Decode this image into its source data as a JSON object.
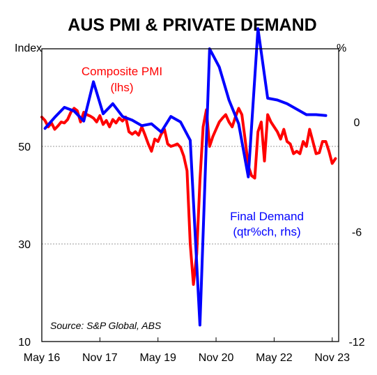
{
  "chart_data": {
    "type": "line",
    "title": "AUS PMI & PRIVATE DEMAND",
    "left_axis": {
      "unit_label": "Index",
      "min": 10,
      "max": 70,
      "ticks": [
        50,
        30,
        10
      ]
    },
    "right_axis": {
      "unit_label": "%",
      "min": -12,
      "max": 4,
      "ticks": [
        0,
        -6,
        -12
      ]
    },
    "x_axis": {
      "start": "2016-05",
      "end": "2024-01",
      "tick_labels": [
        "May 16",
        "Nov 17",
        "May 19",
        "Nov 20",
        "May 22",
        "Nov 23"
      ],
      "tick_dates": [
        "2016-05",
        "2017-11",
        "2019-05",
        "2020-11",
        "2022-05",
        "2023-11"
      ]
    },
    "gridlines": [
      50,
      30
    ],
    "source": "Source: S&P Global, ABS",
    "series": [
      {
        "name": "Composite PMI",
        "axis": "left",
        "color": "#ff0000",
        "annotation": [
          "Composite PMI",
          "(lhs)"
        ],
        "points": [
          [
            "2016-05",
            56.0
          ],
          [
            "2016-06",
            55.3
          ],
          [
            "2016-07",
            54.0
          ],
          [
            "2016-08",
            54.8
          ],
          [
            "2016-09",
            53.5
          ],
          [
            "2016-10",
            54.2
          ],
          [
            "2016-11",
            55.0
          ],
          [
            "2016-12",
            54.8
          ],
          [
            "2017-01",
            55.5
          ],
          [
            "2017-02",
            57.0
          ],
          [
            "2017-03",
            57.8
          ],
          [
            "2017-04",
            57.3
          ],
          [
            "2017-05",
            55.0
          ],
          [
            "2017-06",
            57.0
          ],
          [
            "2017-07",
            56.5
          ],
          [
            "2017-08",
            56.2
          ],
          [
            "2017-09",
            55.8
          ],
          [
            "2017-10",
            55.0
          ],
          [
            "2017-11",
            56.3
          ],
          [
            "2017-12",
            54.5
          ],
          [
            "2018-01",
            55.3
          ],
          [
            "2018-02",
            54.0
          ],
          [
            "2018-03",
            55.5
          ],
          [
            "2018-04",
            54.8
          ],
          [
            "2018-05",
            55.8
          ],
          [
            "2018-06",
            55.2
          ],
          [
            "2018-07",
            56.0
          ],
          [
            "2018-08",
            53.0
          ],
          [
            "2018-09",
            52.5
          ],
          [
            "2018-10",
            53.0
          ],
          [
            "2018-11",
            52.3
          ],
          [
            "2018-12",
            54.0
          ],
          [
            "2019-01",
            52.3
          ],
          [
            "2019-02",
            50.5
          ],
          [
            "2019-03",
            49.0
          ],
          [
            "2019-04",
            51.5
          ],
          [
            "2019-05",
            51.0
          ],
          [
            "2019-06",
            52.5
          ],
          [
            "2019-07",
            53.5
          ],
          [
            "2019-08",
            50.5
          ],
          [
            "2019-09",
            50.0
          ],
          [
            "2019-10",
            50.2
          ],
          [
            "2019-11",
            50.5
          ],
          [
            "2019-12",
            49.8
          ],
          [
            "2020-01",
            48.0
          ],
          [
            "2020-02",
            45.0
          ],
          [
            "2020-03",
            30.0
          ],
          [
            "2020-04",
            21.7
          ],
          [
            "2020-05",
            28.0
          ],
          [
            "2020-06",
            43.0
          ],
          [
            "2020-07",
            54.0
          ],
          [
            "2020-08",
            57.5
          ],
          [
            "2020-09",
            50.0
          ],
          [
            "2020-10",
            52.0
          ],
          [
            "2020-11",
            53.5
          ],
          [
            "2020-12",
            55.0
          ],
          [
            "2021-01",
            55.8
          ],
          [
            "2021-02",
            56.5
          ],
          [
            "2021-03",
            55.0
          ],
          [
            "2021-04",
            54.0
          ],
          [
            "2021-05",
            56.0
          ],
          [
            "2021-06",
            57.8
          ],
          [
            "2021-07",
            56.5
          ],
          [
            "2021-08",
            51.5
          ],
          [
            "2021-09",
            46.0
          ],
          [
            "2021-10",
            44.0
          ],
          [
            "2021-11",
            43.5
          ],
          [
            "2021-12",
            53.0
          ],
          [
            "2022-01",
            55.0
          ],
          [
            "2022-02",
            47.0
          ],
          [
            "2022-03",
            56.5
          ],
          [
            "2022-04",
            55.0
          ],
          [
            "2022-05",
            54.0
          ],
          [
            "2022-06",
            53.0
          ],
          [
            "2022-07",
            51.5
          ],
          [
            "2022-08",
            53.5
          ],
          [
            "2022-09",
            51.0
          ],
          [
            "2022-10",
            50.5
          ],
          [
            "2022-11",
            48.5
          ],
          [
            "2022-12",
            49.0
          ],
          [
            "2023-01",
            48.5
          ],
          [
            "2023-02",
            51.0
          ],
          [
            "2023-03",
            50.0
          ],
          [
            "2023-04",
            53.5
          ],
          [
            "2023-05",
            51.0
          ],
          [
            "2023-06",
            48.5
          ],
          [
            "2023-07",
            48.7
          ],
          [
            "2023-08",
            51.0
          ],
          [
            "2023-09",
            51.0
          ],
          [
            "2023-10",
            49.0
          ],
          [
            "2023-11",
            46.5
          ],
          [
            "2023-12",
            47.5
          ]
        ]
      },
      {
        "name": "Final Demand",
        "axis": "right",
        "color": "#0000ff",
        "annotation": [
          "Final Demand",
          "(qtr%ch, rhs)"
        ],
        "points": [
          [
            "2016-06",
            -0.35
          ],
          [
            "2016-09",
            0.25
          ],
          [
            "2016-12",
            0.8
          ],
          [
            "2017-03",
            0.6
          ],
          [
            "2017-06",
            0.05
          ],
          [
            "2017-09",
            2.2
          ],
          [
            "2017-12",
            0.45
          ],
          [
            "2018-03",
            1.0
          ],
          [
            "2018-06",
            0.3
          ],
          [
            "2018-09",
            0.1
          ],
          [
            "2018-12",
            -0.2
          ],
          [
            "2019-03",
            -0.1
          ],
          [
            "2019-06",
            -0.55
          ],
          [
            "2019-09",
            0.3
          ],
          [
            "2019-12",
            0.0
          ],
          [
            "2020-03",
            -1.0
          ],
          [
            "2020-06",
            -11.1
          ],
          [
            "2020-09",
            4.0
          ],
          [
            "2020-12",
            3.0
          ],
          [
            "2021-03",
            1.2
          ],
          [
            "2021-06",
            -0.1
          ],
          [
            "2021-09",
            -3.0
          ],
          [
            "2021-12",
            5.1
          ],
          [
            "2022-03",
            1.3
          ],
          [
            "2022-06",
            1.2
          ],
          [
            "2022-09",
            1.0
          ],
          [
            "2022-12",
            0.7
          ],
          [
            "2023-03",
            0.4
          ],
          [
            "2023-06",
            0.4
          ],
          [
            "2023-09",
            0.35
          ]
        ]
      }
    ]
  }
}
